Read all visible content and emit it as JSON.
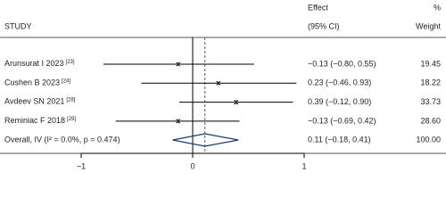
{
  "chart_data": {
    "type": "forest",
    "headers": {
      "effect": "Effect",
      "pct": "%",
      "study": "STUDY",
      "ci": "(95% CI)",
      "weight": "Weight"
    },
    "studies": [
      {
        "name": "Arunsurat I 2023",
        "ref": "[23]",
        "effect": -0.13,
        "lo": -0.8,
        "hi": 0.55,
        "label": "−0.13 (−0.80, 0.55)",
        "weight": 19.45
      },
      {
        "name": "Cushen B 2023",
        "ref": "[24]",
        "effect": 0.23,
        "lo": -0.46,
        "hi": 0.93,
        "label": "0.23 (−0.46, 0.93)",
        "weight": 18.22
      },
      {
        "name": "Avdeev SN 2021",
        "ref": "[28]",
        "effect": 0.39,
        "lo": -0.12,
        "hi": 0.9,
        "label": "0.39 (−0.12, 0.90)",
        "weight": 33.73
      },
      {
        "name": "Reminiac F 2018",
        "ref": "[29]",
        "effect": -0.13,
        "lo": -0.69,
        "hi": 0.42,
        "label": "−0.13 (−0.69, 0.42)",
        "weight": 28.6,
        "weight_label": "28.60"
      }
    ],
    "overall": {
      "name": "Overall, IV (I² = 0.0%, p = 0.474)",
      "effect": 0.11,
      "lo": -0.18,
      "hi": 0.41,
      "label": "0.11 (−0.18, 0.41)",
      "weight": 100,
      "weight_label": "100.00"
    },
    "xlim": [
      -1,
      1
    ],
    "xticks": [
      {
        "value": -1,
        "label": "−1"
      },
      0,
      1
    ],
    "colors": {
      "ci": "#000000",
      "box": "#8c8c8c",
      "diamond": "#1a3a7a",
      "overall_line": "#b03a3a",
      "null_line": "#000000"
    }
  }
}
